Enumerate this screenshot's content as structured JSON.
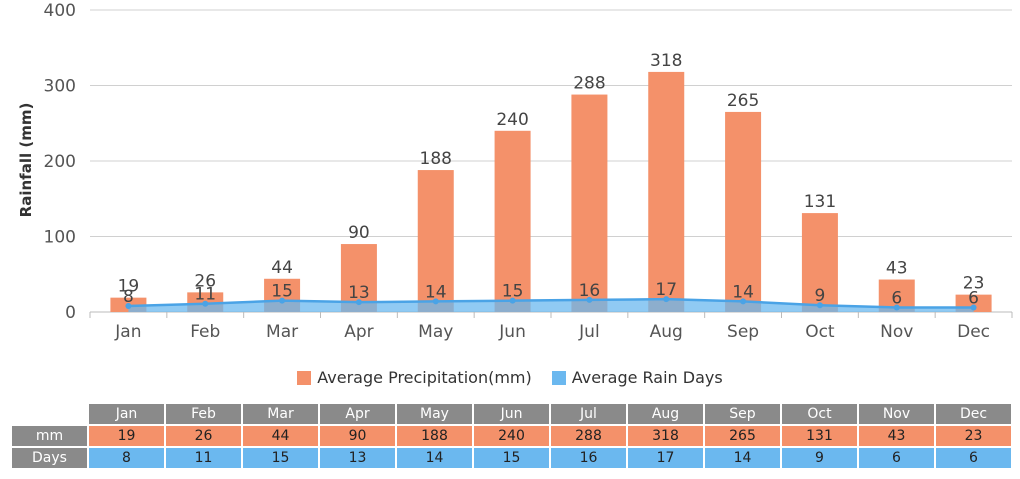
{
  "chart_data": {
    "type": "bar",
    "categories": [
      "Jan",
      "Feb",
      "Mar",
      "Apr",
      "May",
      "Jun",
      "Jul",
      "Aug",
      "Sep",
      "Oct",
      "Nov",
      "Dec"
    ],
    "series": [
      {
        "name": "Average Precipitation(mm)",
        "type": "bar",
        "values": [
          19,
          26,
          44,
          90,
          188,
          240,
          288,
          318,
          265,
          131,
          43,
          23
        ],
        "color": "#f4916a"
      },
      {
        "name": "Average Rain Days",
        "type": "area",
        "values": [
          8,
          11,
          15,
          13,
          14,
          15,
          16,
          17,
          14,
          9,
          6,
          6
        ],
        "color": "#6bb8ef"
      }
    ],
    "ylabel": "Rainfall (mm)",
    "ylim": [
      0,
      400
    ],
    "yticks": [
      0,
      100,
      200,
      300,
      400
    ],
    "grid": true,
    "legend": "bottom-center"
  },
  "table": {
    "row_labels": {
      "mm": "mm",
      "days": "Days"
    }
  }
}
